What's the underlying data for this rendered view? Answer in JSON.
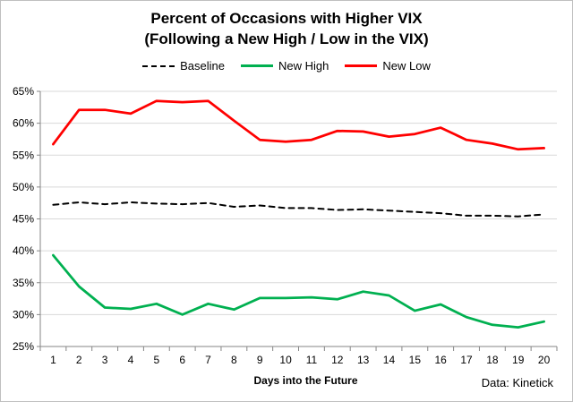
{
  "chart_data": {
    "type": "line",
    "title": "Percent of Occasions with Higher VIX",
    "subtitle": "(Following a New High / Low in the VIX)",
    "xlabel": "Days into the Future",
    "ylabel": "",
    "source": "Data: Kinetick",
    "x": [
      1,
      2,
      3,
      4,
      5,
      6,
      7,
      8,
      9,
      10,
      11,
      12,
      13,
      14,
      15,
      16,
      17,
      18,
      19,
      20
    ],
    "ylim": [
      25,
      65
    ],
    "yticks": [
      "25%",
      "30%",
      "35%",
      "40%",
      "45%",
      "50%",
      "55%",
      "60%",
      "65%"
    ],
    "ytick_values": [
      25,
      30,
      35,
      40,
      45,
      50,
      55,
      60,
      65
    ],
    "grid": "horizontal",
    "legend_position": "top",
    "series": [
      {
        "name": "Baseline",
        "color": "#000000",
        "dashed": true,
        "values": [
          47.2,
          47.6,
          47.3,
          47.6,
          47.4,
          47.3,
          47.5,
          46.9,
          47.1,
          46.7,
          46.7,
          46.4,
          46.5,
          46.3,
          46.1,
          45.9,
          45.5,
          45.5,
          45.4,
          45.7
        ]
      },
      {
        "name": "New High",
        "color": "#00b050",
        "dashed": false,
        "values": [
          39.3,
          34.4,
          31.1,
          30.9,
          31.7,
          30.0,
          31.7,
          30.8,
          32.6,
          32.6,
          32.7,
          32.4,
          33.6,
          33.0,
          30.6,
          31.6,
          29.6,
          28.4,
          28.0,
          28.9
        ]
      },
      {
        "name": "New Low",
        "color": "#ff0000",
        "dashed": false,
        "values": [
          56.7,
          62.1,
          62.1,
          61.5,
          63.5,
          63.3,
          63.5,
          60.4,
          57.4,
          57.1,
          57.4,
          58.8,
          58.7,
          57.9,
          58.3,
          59.3,
          57.4,
          56.8,
          55.9,
          56.1
        ]
      }
    ]
  }
}
